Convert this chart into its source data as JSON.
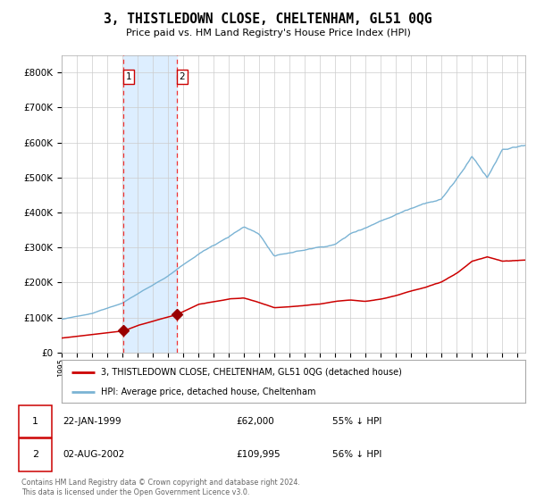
{
  "title": "3, THISTLEDOWN CLOSE, CHELTENHAM, GL51 0QG",
  "subtitle": "Price paid vs. HM Land Registry's House Price Index (HPI)",
  "legend_line1": "3, THISTLEDOWN CLOSE, CHELTENHAM, GL51 0QG (detached house)",
  "legend_line2": "HPI: Average price, detached house, Cheltenham",
  "transaction1_date": "22-JAN-1999",
  "transaction1_price": "£62,000",
  "transaction1_hpi": "55% ↓ HPI",
  "transaction1_year": 1999.06,
  "transaction1_value": 62000,
  "transaction2_date": "02-AUG-2002",
  "transaction2_price": "£109,995",
  "transaction2_hpi": "56% ↓ HPI",
  "transaction2_year": 2002.59,
  "transaction2_value": 109995,
  "hpi_color": "#7ab3d4",
  "price_color": "#cc0000",
  "marker_color": "#990000",
  "vline_color": "#ee3333",
  "shade_color": "#ddeeff",
  "background_color": "#ffffff",
  "grid_color": "#cccccc",
  "ylim": [
    0,
    850000
  ],
  "xlim_start": 1995.0,
  "xlim_end": 2025.5,
  "copyright_text": "Contains HM Land Registry data © Crown copyright and database right 2024.\nThis data is licensed under the Open Government Licence v3.0.",
  "footnote_color": "#666666"
}
